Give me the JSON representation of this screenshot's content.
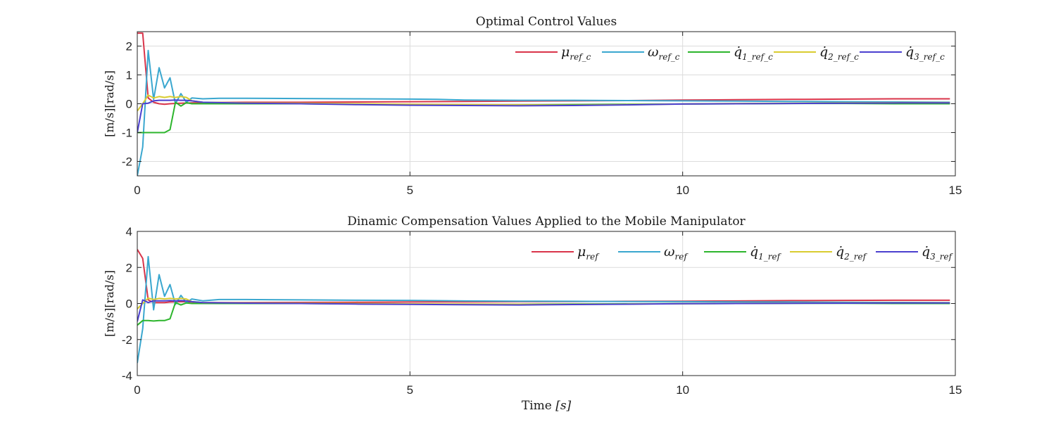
{
  "xlabel_main": "Time ",
  "xlabel_unit": "[s]",
  "chart_data": [
    {
      "type": "line",
      "title": "Optimal Control Values",
      "ylabel": "[m/s][rad/s]",
      "xlim": [
        0,
        15
      ],
      "ylim": [
        -2.5,
        2.5
      ],
      "xticks": [
        0,
        5,
        10,
        15
      ],
      "yticks": [
        -2,
        -1,
        0,
        1,
        2
      ],
      "grid": true,
      "legend_position": "top-right",
      "series": [
        {
          "name": "μ",
          "sub": "ref_c",
          "color": "#d9344a",
          "x": [
            0,
            0.1,
            0.2,
            0.3,
            0.4,
            0.5,
            0.6,
            0.8,
            1.0,
            1.2,
            2,
            3,
            4,
            5,
            6,
            7,
            8,
            9,
            10,
            11,
            12,
            13,
            14,
            14.9
          ],
          "y": [
            2.45,
            2.45,
            0.2,
            0.05,
            0.0,
            -0.02,
            0.0,
            0.02,
            0.03,
            0.04,
            0.05,
            0.05,
            0.06,
            0.07,
            0.08,
            0.09,
            0.1,
            0.11,
            0.13,
            0.14,
            0.15,
            0.16,
            0.17,
            0.17
          ]
        },
        {
          "name": "ω",
          "sub": "ref_c",
          "color": "#3aa7cf",
          "x": [
            0,
            0.1,
            0.2,
            0.3,
            0.4,
            0.5,
            0.6,
            0.7,
            0.8,
            0.9,
            1.0,
            1.2,
            1.5,
            2,
            3,
            4,
            5,
            5.5,
            6,
            7,
            8,
            9,
            10,
            11,
            12,
            13,
            14,
            14.9
          ],
          "y": [
            -2.5,
            -1.5,
            1.85,
            0.15,
            1.25,
            0.55,
            0.9,
            0.0,
            0.35,
            0.05,
            0.2,
            0.17,
            0.19,
            0.19,
            0.18,
            0.17,
            0.16,
            0.15,
            0.13,
            0.12,
            0.12,
            0.11,
            0.1,
            0.09,
            0.08,
            0.07,
            0.06,
            0.05
          ]
        },
        {
          "name": "q̇",
          "sub": "1_ref_c",
          "color": "#2cb52c",
          "x": [
            0,
            0.1,
            0.2,
            0.3,
            0.4,
            0.5,
            0.6,
            0.7,
            0.8,
            0.9,
            1.0,
            1.2,
            2,
            3,
            4,
            5,
            6,
            7,
            8,
            9,
            10,
            11,
            12,
            13,
            14,
            14.9
          ],
          "y": [
            -1.0,
            -1.0,
            -1.0,
            -1.0,
            -1.0,
            -1.0,
            -0.9,
            0.05,
            -0.08,
            0.04,
            0.0,
            0.0,
            0.0,
            0.0,
            -0.02,
            -0.03,
            -0.05,
            -0.04,
            -0.03,
            -0.02,
            -0.01,
            0.0,
            0.01,
            0.01,
            0.0,
            0.0
          ]
        },
        {
          "name": "q̇",
          "sub": "2_ref_c",
          "color": "#d9cc30",
          "x": [
            0,
            0.1,
            0.2,
            0.3,
            0.4,
            0.5,
            0.6,
            0.7,
            0.8,
            0.9,
            1.0,
            1.2,
            2,
            3,
            4,
            5,
            6,
            7,
            8,
            9,
            10,
            11,
            12,
            13,
            14,
            14.9
          ],
          "y": [
            -0.25,
            0.0,
            0.3,
            0.2,
            0.25,
            0.22,
            0.25,
            0.22,
            0.25,
            0.22,
            0.1,
            0.05,
            0.03,
            0.02,
            0.0,
            -0.02,
            -0.03,
            -0.04,
            -0.05,
            -0.03,
            -0.01,
            0.01,
            0.02,
            0.03,
            0.04,
            0.04
          ]
        },
        {
          "name": "q̇",
          "sub": "3_ref_c",
          "color": "#4b3fcf",
          "x": [
            0,
            0.1,
            0.2,
            0.3,
            0.4,
            0.5,
            0.6,
            0.7,
            0.8,
            0.9,
            1.0,
            1.2,
            2,
            3,
            4,
            5,
            6,
            7,
            8,
            9,
            10,
            11,
            12,
            13,
            14,
            14.9
          ],
          "y": [
            -1.0,
            0.0,
            0.02,
            0.1,
            0.12,
            0.12,
            0.12,
            0.13,
            0.12,
            0.12,
            0.1,
            0.05,
            0.02,
            0.0,
            -0.03,
            -0.05,
            -0.06,
            -0.07,
            -0.06,
            -0.04,
            -0.01,
            0.0,
            0.01,
            0.02,
            0.03,
            0.03
          ]
        }
      ]
    },
    {
      "type": "line",
      "title": "Dinamic Compensation Values Applied to the Mobile Manipulator",
      "ylabel": "[m/s][rad/s]",
      "xlim": [
        0,
        15
      ],
      "ylim": [
        -4,
        4
      ],
      "xticks": [
        0,
        5,
        10,
        15
      ],
      "yticks": [
        -4,
        -2,
        0,
        2,
        4
      ],
      "grid": true,
      "legend_position": "top-right",
      "series": [
        {
          "name": "μ",
          "sub": "ref",
          "color": "#d9344a",
          "x": [
            0,
            0.1,
            0.2,
            0.3,
            0.4,
            0.5,
            0.6,
            0.8,
            1.0,
            1.2,
            2,
            3,
            4,
            5,
            6,
            7,
            8,
            9,
            10,
            11,
            12,
            13,
            14,
            14.9
          ],
          "y": [
            3.0,
            2.5,
            0.2,
            0.05,
            0.05,
            0.05,
            0.08,
            0.1,
            0.08,
            0.05,
            0.05,
            0.06,
            0.07,
            0.08,
            0.09,
            0.1,
            0.11,
            0.12,
            0.13,
            0.14,
            0.16,
            0.17,
            0.18,
            0.18
          ]
        },
        {
          "name": "ω",
          "sub": "ref",
          "color": "#3aa7cf",
          "x": [
            0,
            0.1,
            0.2,
            0.3,
            0.4,
            0.5,
            0.6,
            0.7,
            0.8,
            0.9,
            1.0,
            1.2,
            1.5,
            2,
            3,
            4,
            5,
            6,
            7,
            8,
            9,
            10,
            11,
            12,
            13,
            14,
            14.9
          ],
          "y": [
            -3.3,
            -1.4,
            2.6,
            -0.35,
            1.6,
            0.4,
            1.05,
            -0.05,
            0.45,
            0.05,
            0.25,
            0.15,
            0.22,
            0.22,
            0.2,
            0.18,
            0.17,
            0.14,
            0.13,
            0.12,
            0.11,
            0.1,
            0.09,
            0.08,
            0.07,
            0.06,
            0.05
          ]
        },
        {
          "name": "q̇",
          "sub": "1_ref",
          "color": "#2cb52c",
          "x": [
            0,
            0.1,
            0.2,
            0.3,
            0.4,
            0.5,
            0.6,
            0.7,
            0.8,
            0.9,
            1.0,
            1.2,
            2,
            3,
            4,
            5,
            6,
            7,
            8,
            9,
            10,
            11,
            12,
            13,
            14,
            14.9
          ],
          "y": [
            -1.2,
            -0.95,
            -0.95,
            -0.97,
            -0.95,
            -0.95,
            -0.85,
            0.05,
            -0.08,
            0.03,
            0.0,
            0.0,
            0.0,
            0.0,
            -0.02,
            -0.03,
            -0.05,
            -0.04,
            -0.03,
            -0.02,
            -0.01,
            0.0,
            0.01,
            0.01,
            0.0,
            0.0
          ]
        },
        {
          "name": "q̇",
          "sub": "2_ref",
          "color": "#d9cc30",
          "x": [
            0,
            0.1,
            0.2,
            0.3,
            0.4,
            0.5,
            0.6,
            0.7,
            0.8,
            0.9,
            1.0,
            1.2,
            2,
            3,
            4,
            5,
            6,
            7,
            8,
            9,
            10,
            11,
            12,
            13,
            14,
            14.9
          ],
          "y": [
            -0.3,
            0.0,
            0.3,
            0.22,
            0.28,
            0.25,
            0.28,
            0.25,
            0.28,
            0.25,
            0.1,
            0.05,
            0.03,
            0.02,
            0.0,
            -0.02,
            -0.03,
            -0.04,
            -0.05,
            -0.03,
            -0.01,
            0.01,
            0.02,
            0.03,
            0.04,
            0.04
          ]
        },
        {
          "name": "q̇",
          "sub": "3_ref",
          "color": "#4b3fcf",
          "x": [
            0,
            0.1,
            0.2,
            0.3,
            0.4,
            0.5,
            0.6,
            0.7,
            0.8,
            0.9,
            1.0,
            1.2,
            2,
            3,
            4,
            5,
            6,
            7,
            8,
            9,
            10,
            11,
            12,
            13,
            14,
            14.9
          ],
          "y": [
            -1.0,
            0.2,
            0.05,
            0.15,
            0.15,
            0.15,
            0.16,
            0.15,
            0.16,
            0.15,
            0.1,
            0.05,
            0.02,
            0.0,
            -0.03,
            -0.05,
            -0.07,
            -0.08,
            -0.06,
            -0.04,
            -0.01,
            0.0,
            0.01,
            0.02,
            0.03,
            0.03
          ]
        }
      ]
    }
  ]
}
